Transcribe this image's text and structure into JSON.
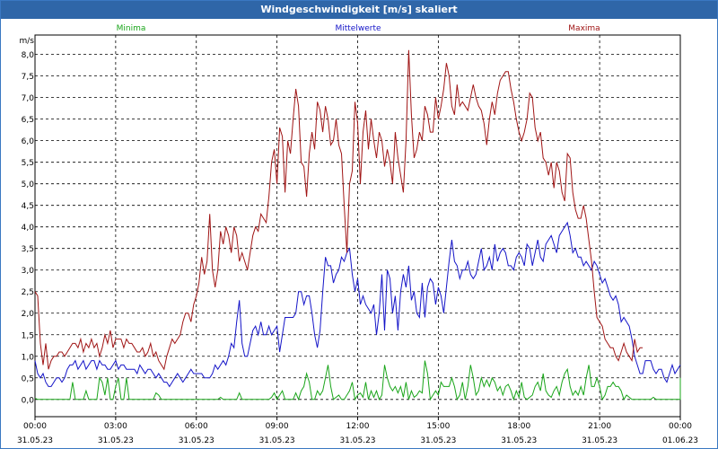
{
  "window": {
    "title": "Windgeschwindigkeit [m/s] skaliert"
  },
  "colors": {
    "minima": "#1aa51a",
    "mittel": "#1515c8",
    "maxima": "#a01515",
    "titlebar": "#2f66a8"
  },
  "chart_data": {
    "type": "line",
    "title": "Windgeschwindigkeit [m/s] skaliert",
    "ylabel": "m/s",
    "ylim": [
      -0.4,
      8.45
    ],
    "yticks": [
      "0,0",
      "0,5",
      "1,0",
      "1,5",
      "2,0",
      "2,5",
      "3,0",
      "3,5",
      "4,0",
      "4,5",
      "5,0",
      "5,5",
      "6,0",
      "6,5",
      "7,0",
      "7,5",
      "8,0"
    ],
    "x_range_hours": [
      0,
      24
    ],
    "xticks": [
      {
        "time": "00:00",
        "date": "31.05.23"
      },
      {
        "time": "03:00",
        "date": "31.05.23"
      },
      {
        "time": "06:00",
        "date": "31.05.23"
      },
      {
        "time": "09:00",
        "date": "31.05.23"
      },
      {
        "time": "12:00",
        "date": "31.05.23"
      },
      {
        "time": "15:00",
        "date": "31.05.23"
      },
      {
        "time": "18:00",
        "date": "31.05.23"
      },
      {
        "time": "21:00",
        "date": "31.05.23"
      },
      {
        "time": "00:00",
        "date": "01.06.23"
      }
    ],
    "grid": true,
    "legend_placement": "top",
    "x_step_hours": 0.1,
    "series": [
      {
        "name": "Minima",
        "color": "#1aa51a",
        "values": [
          0.03,
          0,
          0,
          0,
          0,
          0,
          0,
          0,
          0,
          0,
          0,
          0,
          0,
          0,
          0.4,
          0,
          0,
          0,
          0,
          0.2,
          0,
          0,
          0,
          0,
          0.5,
          0.4,
          0.1,
          0.5,
          0,
          0,
          0.3,
          0.5,
          0,
          0,
          0.5,
          0,
          0,
          0,
          0,
          0,
          0,
          0,
          0,
          0,
          0,
          0.15,
          0.1,
          0,
          0,
          0,
          0,
          0,
          0,
          0,
          0,
          0,
          0,
          0,
          0,
          0,
          0,
          0,
          0,
          0,
          0,
          0,
          0,
          0,
          0,
          0.05,
          0,
          0,
          0,
          0,
          0,
          0,
          0.15,
          0,
          0,
          0,
          0,
          0,
          0,
          0,
          0,
          0,
          0,
          0,
          0.05,
          0.15,
          0,
          0.1,
          0.2,
          0,
          0,
          0,
          0,
          0.15,
          0,
          0.2,
          0.3,
          0.6,
          0.4,
          0,
          0,
          0.2,
          0.1,
          0.2,
          0.5,
          0.8,
          0.3,
          0,
          0.05,
          0.1,
          0,
          0,
          0.1,
          0.2,
          0.4,
          0,
          0.1,
          0.15,
          0.05,
          0.4,
          0,
          0.2,
          0.05,
          0.2,
          0,
          0.1,
          0.8,
          0.5,
          0.3,
          0.2,
          0.3,
          0.15,
          0.3,
          0.05,
          0.4,
          0,
          0.2,
          0.05,
          0.1,
          0.2,
          0.15,
          0.9,
          0.6,
          0,
          0.1,
          0.2,
          0.1,
          0.4,
          0.3,
          0.3,
          0.3,
          0.5,
          0.3,
          0,
          0.1,
          0.4,
          0,
          0.3,
          0.8,
          0.5,
          0.1,
          0.2,
          0.5,
          0.3,
          0.45,
          0.3,
          0.5,
          0.4,
          0.2,
          0.3,
          0.1,
          0.3,
          0.35,
          0.2,
          0,
          0.2,
          0.05,
          0.4,
          0.05,
          0,
          0.05,
          0.1,
          0.3,
          0.4,
          0.2,
          0.6,
          0.2,
          0.1,
          0.05,
          0.2,
          0.3,
          0.1,
          0.4,
          0.6,
          0.7,
          0.3,
          0.1,
          0.2,
          0.1,
          0.3,
          0.1,
          0.5,
          0.8,
          0.3,
          0.3,
          0.5,
          0.3,
          0,
          0.1,
          0.3,
          0.3,
          0.4,
          0.3,
          0.3,
          0.2,
          0,
          0.1,
          0.05,
          0,
          0,
          0,
          0,
          0,
          0,
          0,
          0,
          0.05,
          0,
          0,
          0,
          0,
          0,
          0,
          0,
          0,
          0,
          0,
          0,
          0,
          0,
          0,
          0.1,
          0.05,
          0.2,
          0.5
        ]
      },
      {
        "name": "Mittelwerte",
        "color": "#1515c8",
        "values": [
          0.9,
          0.6,
          0.5,
          0.6,
          0.4,
          0.3,
          0.3,
          0.4,
          0.5,
          0.5,
          0.4,
          0.5,
          0.7,
          0.8,
          0.8,
          0.9,
          0.7,
          0.8,
          0.9,
          0.7,
          0.8,
          0.9,
          0.9,
          0.7,
          0.9,
          0.8,
          0.8,
          0.7,
          0.7,
          0.8,
          0.9,
          0.7,
          0.8,
          0.8,
          0.7,
          0.7,
          0.7,
          0.7,
          0.6,
          0.8,
          0.7,
          0.6,
          0.7,
          0.7,
          0.6,
          0.5,
          0.6,
          0.5,
          0.4,
          0.4,
          0.3,
          0.4,
          0.5,
          0.6,
          0.5,
          0.4,
          0.5,
          0.6,
          0.7,
          0.6,
          0.6,
          0.6,
          0.6,
          0.5,
          0.5,
          0.5,
          0.6,
          0.8,
          0.7,
          0.8,
          0.9,
          0.8,
          1.0,
          1.3,
          1.2,
          1.8,
          2.3,
          1.3,
          1.0,
          1.0,
          1.3,
          1.6,
          1.7,
          1.5,
          1.8,
          1.5,
          1.5,
          1.7,
          1.5,
          1.6,
          1.7,
          1.1,
          1.5,
          1.9,
          1.9,
          1.9,
          1.9,
          2.0,
          2.5,
          2.5,
          2.2,
          2.4,
          2.4,
          2.0,
          1.5,
          1.2,
          1.6,
          2.5,
          3.3,
          3.1,
          3.1,
          2.7,
          2.9,
          3.0,
          3.3,
          3.2,
          3.4,
          3.5,
          2.9,
          2.5,
          2.8,
          2.2,
          2.4,
          2.2,
          2.1,
          2.0,
          2.2,
          1.5,
          2.0,
          2.9,
          1.6,
          3.0,
          2.8,
          2.0,
          2.4,
          1.6,
          2.5,
          2.9,
          2.6,
          3.1,
          2.3,
          2.5,
          2.0,
          1.9,
          2.7,
          1.9,
          2.6,
          2.8,
          2.7,
          2.2,
          2.6,
          2.4,
          2.0,
          2.6,
          3.2,
          3.7,
          3.2,
          3.1,
          2.8,
          3.0,
          3.0,
          3.2,
          2.9,
          2.8,
          2.9,
          3.2,
          3.5,
          3.0,
          3.1,
          3.3,
          3.0,
          3.6,
          3.2,
          3.4,
          3.5,
          3.4,
          3.1,
          3.1,
          3.0,
          3.3,
          3.4,
          3.3,
          3.1,
          3.6,
          3.5,
          3.1,
          3.4,
          3.7,
          3.3,
          3.2,
          3.6,
          3.7,
          3.8,
          3.6,
          3.4,
          3.8,
          3.9,
          4.0,
          4.1,
          3.8,
          3.4,
          3.5,
          3.3,
          3.3,
          3.1,
          3.2,
          3.1,
          3.0,
          3.2,
          3.1,
          2.9,
          2.7,
          2.8,
          2.6,
          2.4,
          2.3,
          2.4,
          2.2,
          1.8,
          1.9,
          1.8,
          1.7,
          1.4,
          1.0,
          0.8,
          0.6,
          0.6,
          0.9,
          0.9,
          0.9,
          0.7,
          0.6,
          0.7,
          0.7,
          0.5,
          0.4,
          0.6,
          0.8,
          0.6,
          0.7,
          0.8
        ]
      },
      {
        "name": "Maxima",
        "color": "#a01515",
        "values": [
          2.5,
          2.4,
          1.3,
          0.8,
          1.3,
          0.7,
          0.9,
          1.0,
          1.0,
          1.1,
          1.1,
          1.0,
          1.1,
          1.2,
          1.3,
          1.3,
          1.2,
          1.4,
          1.1,
          1.3,
          1.2,
          1.4,
          1.2,
          1.3,
          1.0,
          1.2,
          1.5,
          1.3,
          1.6,
          1.2,
          1.4,
          1.4,
          1.4,
          1.2,
          1.4,
          1.3,
          1.3,
          1.2,
          1.1,
          1.1,
          1.2,
          1.0,
          1.1,
          1.3,
          1.0,
          1.1,
          0.9,
          0.8,
          0.7,
          1.0,
          1.2,
          1.4,
          1.3,
          1.4,
          1.5,
          1.8,
          2.0,
          2.0,
          1.8,
          2.2,
          2.4,
          2.7,
          3.3,
          2.9,
          3.2,
          4.3,
          3.0,
          2.6,
          3.0,
          3.9,
          3.6,
          4.0,
          3.8,
          3.4,
          4.0,
          3.8,
          3.2,
          3.4,
          3.2,
          3.0,
          3.4,
          3.8,
          4.0,
          3.9,
          4.3,
          4.2,
          4.1,
          4.7,
          5.5,
          5.8,
          5.0,
          6.3,
          6.1,
          4.8,
          6.0,
          5.7,
          6.5,
          7.2,
          6.8,
          5.5,
          5.4,
          4.7,
          5.7,
          6.2,
          5.8,
          6.9,
          6.7,
          6.2,
          6.8,
          6.5,
          5.9,
          6.0,
          6.5,
          5.9,
          5.7,
          4.5,
          3.4,
          5.0,
          5.3,
          6.9,
          6.4,
          5.0,
          6.2,
          6.7,
          5.8,
          6.5,
          6.0,
          5.6,
          6.2,
          6.0,
          5.4,
          5.8,
          5.5,
          5.0,
          6.2,
          5.6,
          5.2,
          4.8,
          6.0,
          8.1,
          6.6,
          5.6,
          5.8,
          6.2,
          6.0,
          6.8,
          6.6,
          6.2,
          6.2,
          7.0,
          6.5,
          6.8,
          7.2,
          7.8,
          7.5,
          6.8,
          6.6,
          7.3,
          6.8,
          6.9,
          6.8,
          6.7,
          7.0,
          7.3,
          7.0,
          6.8,
          6.7,
          6.4,
          5.9,
          6.5,
          6.9,
          6.6,
          7.1,
          7.4,
          7.5,
          7.6,
          7.6,
          7.2,
          6.9,
          6.5,
          6.2,
          6.0,
          6.2,
          6.5,
          7.1,
          7.0,
          6.3,
          6.0,
          6.2,
          5.6,
          5.5,
          5.2,
          5.5,
          4.9,
          5.5,
          5.3,
          4.8,
          4.6,
          5.7,
          5.6,
          4.8,
          4.4,
          4.2,
          4.2,
          4.5,
          4.2,
          3.7,
          3.2,
          2.5,
          1.9,
          1.8,
          1.7,
          1.4,
          1.3,
          1.2,
          1.2,
          1.0,
          0.9,
          1.1,
          1.3,
          1.1,
          1.0,
          0.9,
          1.4,
          1.1,
          1.2,
          1.2
        ]
      }
    ]
  }
}
